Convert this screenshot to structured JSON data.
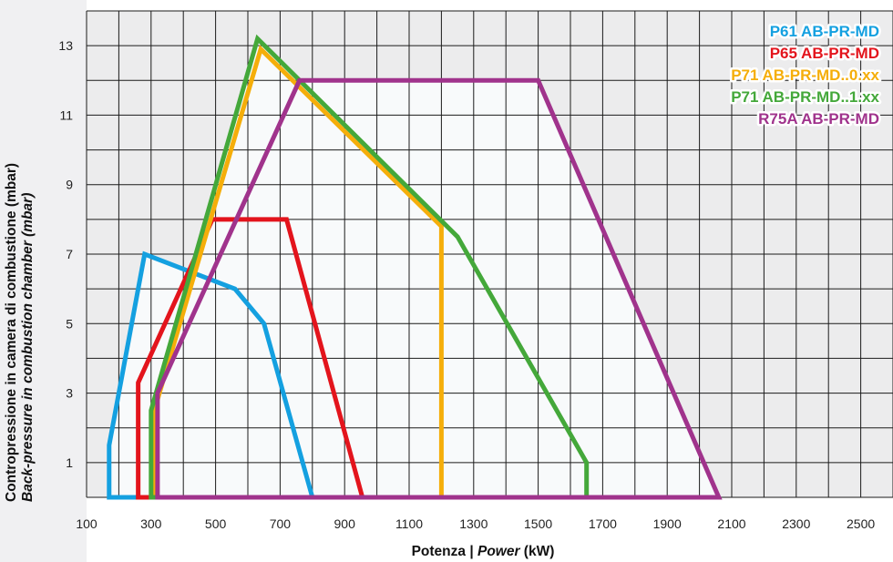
{
  "chart_data": {
    "type": "line",
    "ylabel": "Contropressione in camera di combustione (mbar)",
    "ylabel_en": "Back-pressure in combustion chamber (mbar)",
    "xlabel_it": "Potenza",
    "xlabel_sep": " | ",
    "xlabel_en": "Power",
    "xlabel_unit": " (kW)",
    "xlim": [
      100,
      2600
    ],
    "ylim": [
      0,
      14
    ],
    "xticks": [
      100,
      300,
      500,
      700,
      900,
      1100,
      1300,
      1500,
      1700,
      1900,
      2100,
      2300,
      2500
    ],
    "yticks": [
      1,
      3,
      5,
      7,
      9,
      11,
      13
    ],
    "grid": true,
    "legend_position": "top-right",
    "series": [
      {
        "name": "P61 AB-PR-MD",
        "color": "#14a0e0",
        "points": [
          [
            170,
            0
          ],
          [
            170,
            1.5
          ],
          [
            280,
            7
          ],
          [
            560,
            6
          ],
          [
            650,
            5
          ],
          [
            800,
            0
          ]
        ]
      },
      {
        "name": "P65 AB-PR-MD",
        "color": "#e3141c",
        "points": [
          [
            260,
            0
          ],
          [
            260,
            3.3
          ],
          [
            490,
            8
          ],
          [
            720,
            8
          ],
          [
            955,
            0
          ]
        ]
      },
      {
        "name": "P71 AB-PR-MD..0.xx",
        "color": "#f5ae0a",
        "points": [
          [
            310,
            0
          ],
          [
            310,
            2.5
          ],
          [
            640,
            12.9
          ],
          [
            1200,
            7.8
          ],
          [
            1200,
            0
          ]
        ]
      },
      {
        "name": "P71 AB-PR-MD..1.xx",
        "color": "#44a83a",
        "points": [
          [
            300,
            0
          ],
          [
            300,
            2.5
          ],
          [
            630,
            13.2
          ],
          [
            1250,
            7.5
          ],
          [
            1650,
            1
          ],
          [
            1650,
            0
          ]
        ]
      },
      {
        "name": "R75A AB-PR-MD",
        "color": "#a0338c",
        "points": [
          [
            320,
            0
          ],
          [
            320,
            3
          ],
          [
            760,
            12
          ],
          [
            1500,
            12
          ],
          [
            2060,
            0
          ]
        ]
      }
    ]
  }
}
